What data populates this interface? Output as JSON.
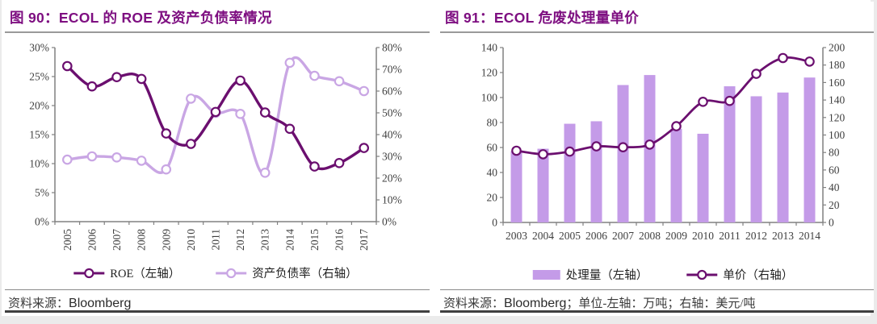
{
  "page": {
    "background": "#ebebeb",
    "panel_background": "#ffffff",
    "accent_title_color": "#7e0f81",
    "axis_color": "#808080"
  },
  "figures": [
    {
      "title": "图 90：ECOL 的 ROE 及资产负债率情况",
      "source_label": "资料来源：",
      "source_value": "Bloomberg",
      "source_extra": ""
    },
    {
      "title": "图 91：ECOL 危废处理量单价",
      "source_label": "资料来源：",
      "source_value": "Bloomberg",
      "source_extra": "；单位-左轴：万吨；右轴：美元/吨"
    }
  ],
  "chart_data": [
    {
      "type": "line",
      "title": "ECOL 的 ROE 及资产负债率情况",
      "categories": [
        "2005",
        "2006",
        "2007",
        "2008",
        "2009",
        "2010",
        "2011",
        "2012",
        "2013",
        "2014",
        "2015",
        "2016",
        "2017"
      ],
      "series": [
        {
          "name": "ROE（左轴）",
          "type": "line",
          "axis": "left",
          "color": "#6b0f6f",
          "marker": "circle",
          "values": [
            26.8,
            23.3,
            24.9,
            24.6,
            15.2,
            13.4,
            18.9,
            24.3,
            18.8,
            16.0,
            9.5,
            10.1,
            12.7
          ]
        },
        {
          "name": "资产负债率（右轴）",
          "type": "line",
          "axis": "right",
          "color": "#c9a6e4",
          "marker": "circle",
          "values": [
            28.5,
            30.0,
            29.5,
            28.0,
            24.0,
            56.5,
            50.0,
            49.5,
            22.5,
            73.0,
            67.0,
            64.5,
            60.0
          ]
        }
      ],
      "left_axis": {
        "min": 0,
        "max": 30,
        "step": 5,
        "format": "percent"
      },
      "right_axis": {
        "min": 0,
        "max": 80,
        "step": 10,
        "format": "percent"
      },
      "grid": false,
      "legend_position": "bottom"
    },
    {
      "type": "bar-line",
      "title": "ECOL 危废处理量单价",
      "categories": [
        "2003",
        "2004",
        "2005",
        "2006",
        "2007",
        "2008",
        "2009",
        "2010",
        "2011",
        "2012",
        "2013",
        "2014"
      ],
      "series": [
        {
          "name": "处理量（左轴）",
          "type": "bar",
          "axis": "left",
          "color": "#c49be8",
          "values": [
            57,
            59,
            79,
            81,
            110,
            118,
            75,
            71,
            109,
            101,
            104,
            116
          ]
        },
        {
          "name": "单价（右轴）",
          "type": "line",
          "axis": "right",
          "color": "#6b0f6f",
          "marker": "circle",
          "values": [
            82,
            78,
            81,
            87,
            86,
            89,
            110,
            138,
            139,
            170,
            188,
            184
          ]
        }
      ],
      "left_axis": {
        "min": 0,
        "max": 140,
        "step": 20,
        "format": "number"
      },
      "right_axis": {
        "min": 0,
        "max": 200,
        "step": 20,
        "format": "number"
      },
      "grid": false,
      "legend_position": "bottom"
    }
  ]
}
